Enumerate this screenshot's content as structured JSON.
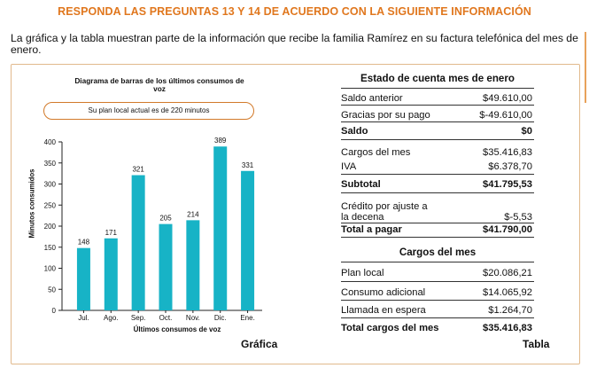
{
  "header": {
    "title": "RESPONDA LAS PREGUNTAS 13 Y 14 DE ACUERDO CON LA SIGUIENTE INFORMACIÓN",
    "intro": "La gráfica y la tabla muestran parte de la información que recibe la familia Ramírez en su factura telefónica del mes de enero."
  },
  "chart_data": {
    "type": "bar",
    "title": "Diagrama de barras de los últimos consumos de voz",
    "plan_note": "Su plan local actual es de 220 minutos",
    "xlabel": "Últimos consumos de voz",
    "ylabel": "Minutos consumidos",
    "categories": [
      "Jul.",
      "Ago.",
      "Sep.",
      "Oct.",
      "Nov.",
      "Dic.",
      "Ene."
    ],
    "values": [
      148,
      171,
      321,
      205,
      214,
      389,
      331
    ],
    "yticks": [
      0,
      50,
      100,
      150,
      200,
      250,
      300,
      350,
      400
    ],
    "ylim": [
      0,
      400
    ],
    "bar_color": "#17b3c6",
    "grid": false,
    "caption": "Gráfica"
  },
  "table": {
    "title": "Estado de cuenta mes de enero",
    "rows": [
      {
        "label": "Saldo anterior",
        "value": "$49.610,00"
      },
      {
        "label": "Gracias por su pago",
        "value": "$-49.610,00"
      },
      {
        "label": "Saldo",
        "value": "$0"
      },
      {
        "label": "Cargos del mes",
        "value": "$35.416,83"
      },
      {
        "label": "IVA",
        "value": "$6.378,70"
      },
      {
        "label": "Subtotal",
        "value": "$41.795,53"
      },
      {
        "label_line1": "Crédito por ajuste a",
        "label_line2": "la decena",
        "value": "$-5,53"
      },
      {
        "label": "Total a pagar",
        "value": "$41.790,00"
      }
    ],
    "section2_title": "Cargos del mes",
    "section2_rows": [
      {
        "label": "Plan local",
        "value": "$20.086,21"
      },
      {
        "label": "Consumo adicional",
        "value": "$14.065,92"
      },
      {
        "label": "Llamada en espera",
        "value": "$1.264,70"
      },
      {
        "label": "Total cargos del mes",
        "value": "$35.416,83"
      }
    ],
    "caption": "Tabla"
  }
}
